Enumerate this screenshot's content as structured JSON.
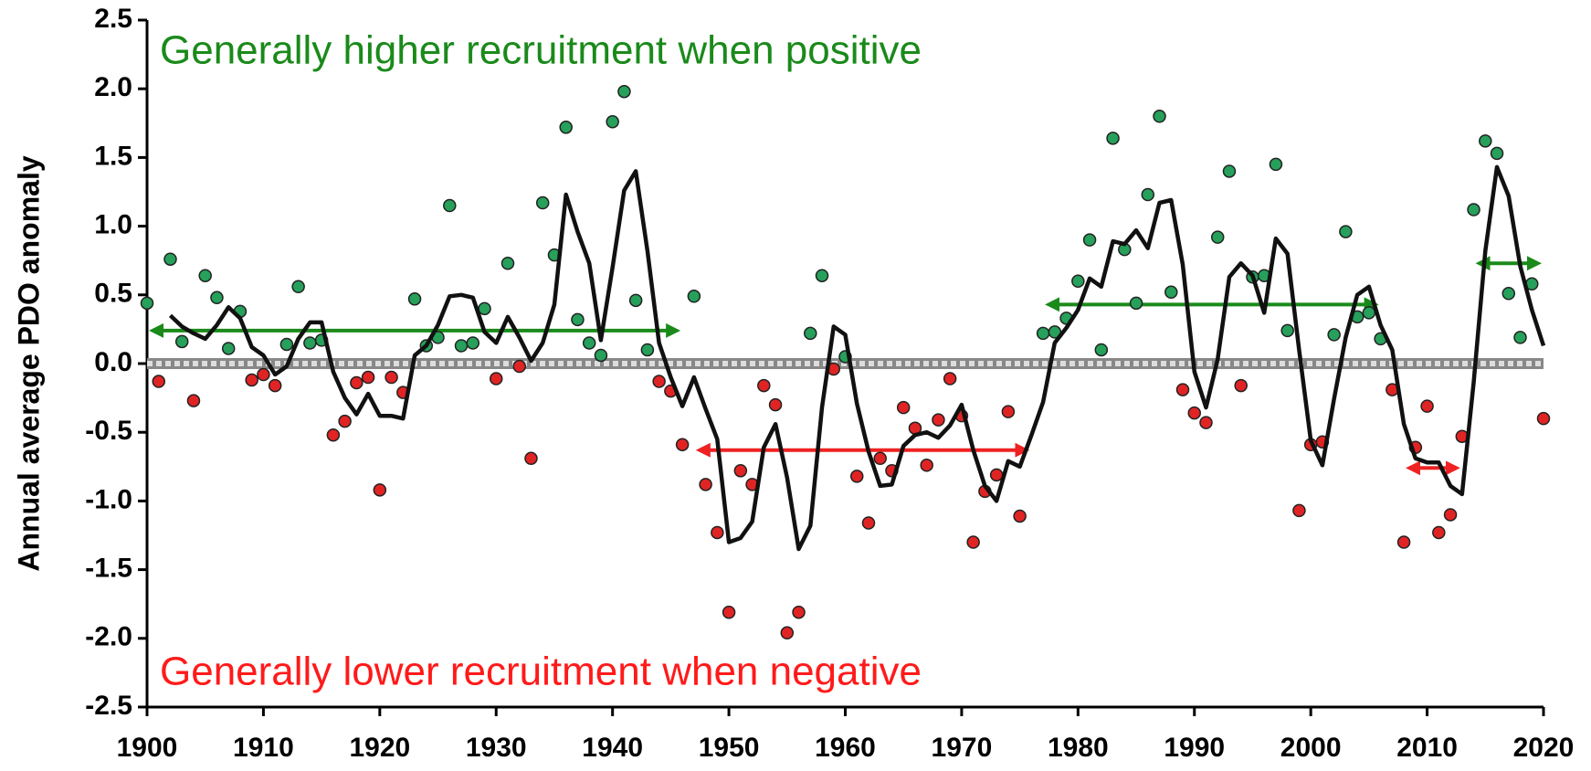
{
  "chart_data": {
    "type": "scatter-line",
    "y_label": "Annual average PDO anomaly",
    "annotation_top": "Generally higher recruitment when positive",
    "annotation_top_color": "#1a8a1a",
    "annotation_bottom": "Generally lower recruitment when negative",
    "annotation_bottom_color": "#ff1a1a",
    "xlim": [
      1900,
      2020
    ],
    "xticks": [
      1900,
      1910,
      1920,
      1930,
      1940,
      1950,
      1960,
      1970,
      1980,
      1990,
      2000,
      2010,
      2020
    ],
    "ylim": [
      -2.5,
      2.5
    ],
    "yticks": [
      {
        "value": 2.5,
        "label": "2.5"
      },
      {
        "value": 2,
        "label": "2.0"
      },
      {
        "value": 1.5,
        "label": "1.5"
      },
      {
        "value": 1,
        "label": "1.0"
      },
      {
        "value": 0.5,
        "label": "0.5"
      },
      {
        "value": 0,
        "label": "0.0"
      },
      {
        "value": -0.5,
        "label": "-0.5"
      },
      {
        "value": -1,
        "label": "-1.0"
      },
      {
        "value": -1.5,
        "label": "-1.5"
      },
      {
        "value": -2,
        "label": "-2.0"
      },
      {
        "value": -2.5,
        "label": "-2.5"
      }
    ],
    "points": {
      "x": [
        1900,
        1901,
        1902,
        1903,
        1904,
        1905,
        1906,
        1907,
        1908,
        1909,
        1910,
        1911,
        1912,
        1913,
        1914,
        1915,
        1916,
        1917,
        1918,
        1919,
        1920,
        1921,
        1922,
        1923,
        1924,
        1925,
        1926,
        1927,
        1928,
        1929,
        1930,
        1931,
        1932,
        1933,
        1934,
        1935,
        1936,
        1937,
        1938,
        1939,
        1940,
        1941,
        1942,
        1943,
        1944,
        1945,
        1946,
        1947,
        1948,
        1949,
        1950,
        1951,
        1952,
        1953,
        1954,
        1955,
        1956,
        1957,
        1958,
        1959,
        1960,
        1961,
        1962,
        1963,
        1964,
        1965,
        1966,
        1967,
        1968,
        1969,
        1970,
        1971,
        1972,
        1973,
        1974,
        1975,
        1977,
        1978,
        1979,
        1980,
        1981,
        1982,
        1983,
        1984,
        1985,
        1986,
        1987,
        1988,
        1989,
        1990,
        1991,
        1992,
        1993,
        1994,
        1995,
        1996,
        1997,
        1998,
        1999,
        2000,
        2001,
        2002,
        2003,
        2004,
        2005,
        2006,
        2007,
        2008,
        2009,
        2010,
        2011,
        2012,
        2013,
        2014,
        2015,
        2016,
        2017,
        2018,
        2019,
        2020
      ],
      "values": [
        0.44,
        -0.13,
        0.76,
        0.16,
        -0.27,
        0.64,
        0.48,
        0.11,
        0.38,
        -0.12,
        -0.08,
        -0.16,
        0.14,
        0.56,
        0.15,
        0.17,
        -0.52,
        -0.42,
        -0.14,
        -0.1,
        -0.92,
        -0.1,
        -0.21,
        0.47,
        0.13,
        0.19,
        1.15,
        0.13,
        0.15,
        0.4,
        -0.11,
        0.73,
        -0.02,
        -0.69,
        1.17,
        0.79,
        1.72,
        0.32,
        0.15,
        0.06,
        1.76,
        1.98,
        0.46,
        0.1,
        -0.13,
        -0.2,
        -0.59,
        0.49,
        -0.88,
        -1.23,
        -1.81,
        -0.78,
        -0.88,
        -0.16,
        -0.3,
        -1.96,
        -1.81,
        0.22,
        0.64,
        -0.04,
        0.05,
        -0.82,
        -1.16,
        -0.69,
        -0.78,
        -0.32,
        -0.47,
        -0.74,
        -0.41,
        -0.11,
        -0.38,
        -1.3,
        -0.93,
        -0.81,
        -0.35,
        -1.11,
        0.22,
        0.23,
        0.33,
        0.6,
        0.9,
        0.1,
        1.64,
        0.83,
        0.44,
        1.23,
        1.8,
        0.52,
        -0.19,
        -0.36,
        -0.43,
        0.92,
        1.4,
        -0.16,
        0.63,
        0.64,
        1.45,
        0.24,
        -1.07,
        -0.59,
        -0.57,
        0.21,
        0.96,
        0.34,
        0.37,
        0.18,
        -0.19,
        -1.3,
        -0.61,
        -0.31,
        -1.23,
        -1.1,
        -0.53,
        1.12,
        1.62,
        1.53,
        0.51,
        0.19,
        0.58,
        -0.4
      ],
      "positive_color": "#26a05a",
      "negative_color": "#e02424"
    },
    "line": {
      "x": [
        1902,
        1903,
        1904,
        1905,
        1906,
        1907,
        1908,
        1909,
        1910,
        1911,
        1912,
        1913,
        1914,
        1915,
        1916,
        1917,
        1918,
        1919,
        1920,
        1921,
        1922,
        1923,
        1924,
        1925,
        1926,
        1927,
        1928,
        1929,
        1930,
        1931,
        1932,
        1933,
        1934,
        1935,
        1936,
        1937,
        1938,
        1939,
        1940,
        1941,
        1942,
        1943,
        1944,
        1945,
        1946,
        1947,
        1948,
        1949,
        1950,
        1951,
        1952,
        1953,
        1954,
        1955,
        1956,
        1957,
        1958,
        1959,
        1960,
        1961,
        1962,
        1963,
        1964,
        1965,
        1966,
        1967,
        1968,
        1969,
        1970,
        1971,
        1972,
        1973,
        1974,
        1975,
        1976,
        1977,
        1978,
        1979,
        1980,
        1981,
        1982,
        1983,
        1984,
        1985,
        1986,
        1987,
        1988,
        1989,
        1990,
        1991,
        1992,
        1993,
        1994,
        1995,
        1996,
        1997,
        1998,
        1999,
        2000,
        2001,
        2002,
        2003,
        2004,
        2005,
        2006,
        2007,
        2008,
        2009,
        2010,
        2011,
        2012,
        2013,
        2014,
        2015,
        2016,
        2017,
        2018,
        2019,
        2020
      ],
      "values": [
        0.35,
        0.27,
        0.22,
        0.18,
        0.28,
        0.41,
        0.33,
        0.12,
        0.06,
        -0.08,
        -0.02,
        0.18,
        0.3,
        0.3,
        -0.06,
        -0.25,
        -0.37,
        -0.22,
        -0.38,
        -0.38,
        -0.4,
        0.06,
        0.13,
        0.28,
        0.49,
        0.5,
        0.48,
        0.23,
        0.15,
        0.34,
        0.19,
        0.02,
        0.15,
        0.43,
        1.23,
        0.96,
        0.73,
        0.17,
        0.7,
        1.26,
        1.4,
        0.82,
        0.15,
        -0.1,
        -0.31,
        -0.1,
        -0.33,
        -0.55,
        -1.3,
        -1.27,
        -1.15,
        -0.61,
        -0.44,
        -0.83,
        -1.35,
        -1.18,
        -0.32,
        0.27,
        0.21,
        -0.29,
        -0.64,
        -0.89,
        -0.88,
        -0.6,
        -0.52,
        -0.5,
        -0.54,
        -0.45,
        -0.3,
        -0.63,
        -0.89,
        -1.0,
        -0.71,
        -0.75,
        -0.52,
        -0.28,
        0.15,
        0.26,
        0.39,
        0.62,
        0.56,
        0.89,
        0.87,
        0.97,
        0.84,
        1.17,
        1.19,
        0.72,
        -0.06,
        -0.32,
        0.03,
        0.63,
        0.73,
        0.64,
        0.37,
        0.91,
        0.8,
        0.1,
        -0.56,
        -0.74,
        -0.26,
        0.19,
        0.5,
        0.56,
        0.28,
        0.1,
        -0.44,
        -0.69,
        -0.72,
        -0.72,
        -0.89,
        -0.95,
        -0.14,
        0.82,
        1.43,
        1.22,
        0.71,
        0.39,
        0.13
      ],
      "color": "#111111"
    },
    "arrows": [
      {
        "from": 1900,
        "to": 1946,
        "y": 0.24,
        "color": "#1a8a1a"
      },
      {
        "from": 1947,
        "to": 1976,
        "y": -0.63,
        "color": "#ee2222"
      },
      {
        "from": 1977,
        "to": 2006,
        "y": 0.43,
        "color": "#1a8a1a"
      },
      {
        "from": 2008,
        "to": 2013,
        "y": -0.76,
        "color": "#ee2222"
      },
      {
        "from": 2014,
        "to": 2020,
        "y": 0.73,
        "color": "#1a8a1a"
      }
    ]
  }
}
